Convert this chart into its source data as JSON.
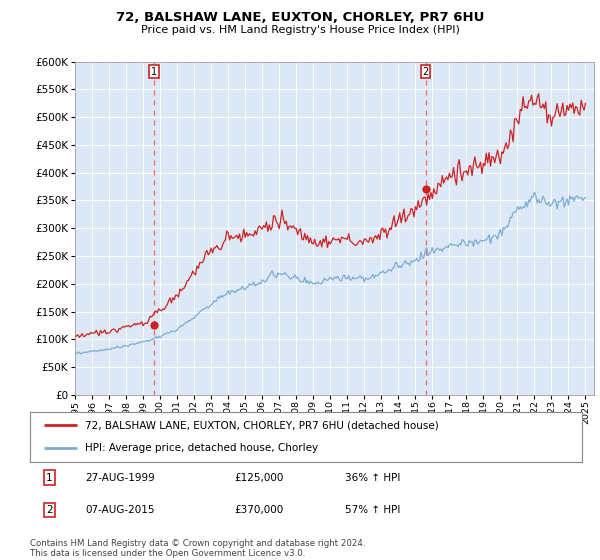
{
  "title": "72, BALSHAW LANE, EUXTON, CHORLEY, PR7 6HU",
  "subtitle": "Price paid vs. HM Land Registry's House Price Index (HPI)",
  "ylim": [
    0,
    600000
  ],
  "ytick_step": 50000,
  "xlim_start": 1995.0,
  "xlim_end": 2025.5,
  "sale1_date": 1999.648,
  "sale1_price": 125000,
  "sale1_label": "1",
  "sale1_year_str": "27-AUG-1999",
  "sale1_pct": "36%",
  "sale2_date": 2015.601,
  "sale2_price": 370000,
  "sale2_label": "2",
  "sale2_year_str": "07-AUG-2015",
  "sale2_pct": "57%",
  "hpi_color": "#7aadd4",
  "price_color": "#cc2222",
  "dashed_line_color": "#ee6666",
  "plot_bg_color": "#dce8f5",
  "fig_bg_color": "#ffffff",
  "grid_color": "#ffffff",
  "legend_label_price": "72, BALSHAW LANE, EUXTON, CHORLEY, PR7 6HU (detached house)",
  "legend_label_hpi": "HPI: Average price, detached house, Chorley",
  "footer": "Contains HM Land Registry data © Crown copyright and database right 2024.\nThis data is licensed under the Open Government Licence v3.0."
}
